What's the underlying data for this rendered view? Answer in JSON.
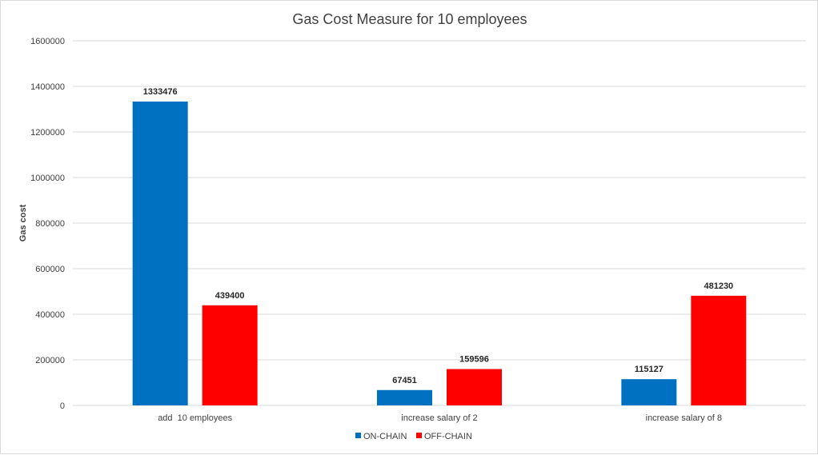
{
  "chart_data": {
    "type": "bar",
    "title": "Gas Cost Measure for 10 employees",
    "xlabel": "",
    "ylabel": "Gas cost",
    "categories": [
      "add  10 employees",
      "increase salary of 2",
      "increase salary of 8"
    ],
    "series": [
      {
        "name": "ON-CHAIN",
        "color": "#0070C0",
        "values": [
          1333476,
          67451,
          115127
        ]
      },
      {
        "name": "OFF-CHAIN",
        "color": "#FF0000",
        "values": [
          439400,
          159596,
          481230
        ]
      }
    ],
    "ylim": [
      0,
      1600000
    ],
    "yticks": [
      0,
      200000,
      400000,
      600000,
      800000,
      1000000,
      1200000,
      1400000,
      1600000
    ],
    "ytick_labels": [
      "0",
      "200000",
      "400000",
      "600000",
      "800000",
      "1000000",
      "1200000",
      "1400000",
      "1600000"
    ],
    "data_labels": [
      [
        "1333476",
        "67451",
        "115127"
      ],
      [
        "439400",
        "159596",
        "481230"
      ]
    ],
    "grid": true,
    "legend": "bottom"
  }
}
